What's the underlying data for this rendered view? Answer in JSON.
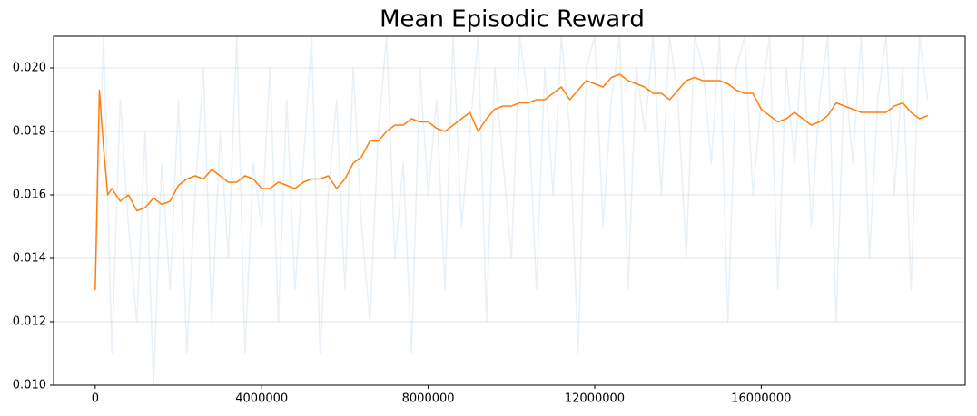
{
  "chart_data": {
    "type": "line",
    "title": "Mean Episodic Reward",
    "xlim": [
      -1000000,
      20900000
    ],
    "xticks": [
      0,
      4000000,
      8000000,
      12000000,
      16000000
    ],
    "ylim": [
      0.01,
      0.021
    ],
    "yticks": [
      {
        "value": 0.01,
        "label": "0.010"
      },
      0.012,
      0.014,
      0.016,
      0.018,
      {
        "value": 0.02,
        "label": "0.020"
      }
    ],
    "grid": true,
    "series": [
      {
        "color": "#1f77b4",
        "opacity": 0.1,
        "x": [
          0,
          200000,
          400000,
          600000,
          800000,
          1000000,
          1200000,
          1400000,
          1600000,
          1800000,
          2000000,
          2200000,
          2400000,
          2600000,
          2800000,
          3000000,
          3200000,
          3400000,
          3600000,
          3800000,
          4000000,
          4200000,
          4400000,
          4600000,
          4800000,
          5000000,
          5200000,
          5400000,
          5600000,
          5800000,
          6000000,
          6200000,
          6400000,
          6600000,
          6800000,
          7000000,
          7200000,
          7400000,
          7600000,
          7800000,
          8000000,
          8200000,
          8400000,
          8600000,
          8800000,
          9000000,
          9200000,
          9400000,
          9600000,
          9800000,
          10000000,
          10200000,
          10400000,
          10600000,
          10800000,
          11000000,
          11200000,
          11400000,
          11600000,
          11800000,
          12000000,
          12200000,
          12400000,
          12600000,
          12800000,
          13000000,
          13200000,
          13400000,
          13600000,
          13800000,
          14000000,
          14200000,
          14400000,
          14600000,
          14800000,
          15000000,
          15200000,
          15400000,
          15600000,
          15800000,
          16000000,
          16200000,
          16400000,
          16600000,
          16800000,
          17000000,
          17200000,
          17400000,
          17600000,
          17800000,
          18000000,
          18200000,
          18400000,
          18600000,
          18800000,
          19000000,
          19200000,
          19400000,
          19600000,
          19800000,
          20000000
        ],
        "values": [
          0.013,
          0.021,
          0.011,
          0.019,
          0.015,
          0.012,
          0.018,
          0.01,
          0.017,
          0.013,
          0.019,
          0.011,
          0.016,
          0.02,
          0.012,
          0.018,
          0.014,
          0.021,
          0.011,
          0.017,
          0.015,
          0.02,
          0.012,
          0.019,
          0.013,
          0.017,
          0.021,
          0.011,
          0.016,
          0.019,
          0.013,
          0.02,
          0.015,
          0.012,
          0.018,
          0.021,
          0.014,
          0.017,
          0.011,
          0.02,
          0.016,
          0.019,
          0.013,
          0.021,
          0.015,
          0.018,
          0.021,
          0.012,
          0.02,
          0.017,
          0.014,
          0.021,
          0.019,
          0.013,
          0.02,
          0.016,
          0.021,
          0.018,
          0.011,
          0.02,
          0.021,
          0.015,
          0.019,
          0.021,
          0.013,
          0.02,
          0.018,
          0.021,
          0.016,
          0.021,
          0.019,
          0.014,
          0.021,
          0.02,
          0.017,
          0.021,
          0.012,
          0.02,
          0.021,
          0.016,
          0.019,
          0.021,
          0.013,
          0.02,
          0.017,
          0.021,
          0.015,
          0.019,
          0.021,
          0.012,
          0.02,
          0.017,
          0.021,
          0.014,
          0.019,
          0.021,
          0.016,
          0.02,
          0.013,
          0.021,
          0.019
        ]
      },
      {
        "color": "#ff7f0e",
        "opacity": 1,
        "x": [
          0,
          100000,
          200000,
          300000,
          400000,
          600000,
          800000,
          1000000,
          1200000,
          1400000,
          1600000,
          1800000,
          2000000,
          2200000,
          2400000,
          2600000,
          2800000,
          3000000,
          3200000,
          3400000,
          3600000,
          3800000,
          4000000,
          4200000,
          4400000,
          4600000,
          4800000,
          5000000,
          5200000,
          5400000,
          5600000,
          5800000,
          6000000,
          6200000,
          6400000,
          6600000,
          6800000,
          7000000,
          7200000,
          7400000,
          7600000,
          7800000,
          8000000,
          8200000,
          8400000,
          8600000,
          8800000,
          9000000,
          9200000,
          9400000,
          9600000,
          9800000,
          10000000,
          10200000,
          10400000,
          10600000,
          10800000,
          11000000,
          11200000,
          11400000,
          11600000,
          11800000,
          12000000,
          12200000,
          12400000,
          12600000,
          12800000,
          13000000,
          13200000,
          13400000,
          13600000,
          13800000,
          14000000,
          14200000,
          14400000,
          14600000,
          14800000,
          15000000,
          15200000,
          15400000,
          15600000,
          15800000,
          16000000,
          16200000,
          16400000,
          16600000,
          16800000,
          17000000,
          17200000,
          17400000,
          17600000,
          17800000,
          18000000,
          18200000,
          18400000,
          18600000,
          18800000,
          19000000,
          19200000,
          19400000,
          19600000,
          19800000,
          20000000
        ],
        "values": [
          0.013,
          0.0193,
          0.0175,
          0.016,
          0.0162,
          0.0158,
          0.016,
          0.0155,
          0.0156,
          0.0159,
          0.0157,
          0.0158,
          0.0163,
          0.0165,
          0.0166,
          0.0165,
          0.0168,
          0.0166,
          0.0164,
          0.0164,
          0.0166,
          0.0165,
          0.0162,
          0.0162,
          0.0164,
          0.0163,
          0.0162,
          0.0164,
          0.0165,
          0.0165,
          0.0166,
          0.0162,
          0.0165,
          0.017,
          0.0172,
          0.0177,
          0.0177,
          0.018,
          0.0182,
          0.0182,
          0.0184,
          0.0183,
          0.0183,
          0.0181,
          0.018,
          0.0182,
          0.0184,
          0.0186,
          0.018,
          0.0184,
          0.0187,
          0.0188,
          0.0188,
          0.0189,
          0.0189,
          0.019,
          0.019,
          0.0192,
          0.0194,
          0.019,
          0.0193,
          0.0196,
          0.0195,
          0.0194,
          0.0197,
          0.0198,
          0.0196,
          0.0195,
          0.0194,
          0.0192,
          0.0192,
          0.019,
          0.0193,
          0.0196,
          0.0197,
          0.0196,
          0.0196,
          0.0196,
          0.0195,
          0.0193,
          0.0192,
          0.0192,
          0.0187,
          0.0185,
          0.0183,
          0.0184,
          0.0186,
          0.0184,
          0.0182,
          0.0183,
          0.0185,
          0.0189,
          0.0188,
          0.0187,
          0.0186,
          0.0186,
          0.0186,
          0.0186,
          0.0188,
          0.0189,
          0.0186,
          0.0184,
          0.0185
        ]
      }
    ]
  }
}
